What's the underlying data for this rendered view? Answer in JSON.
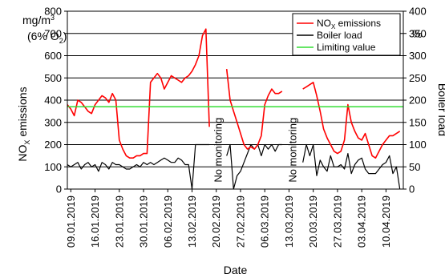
{
  "chart_data": {
    "type": "line",
    "xlabel": "Date",
    "ylabel_left": "NOX emissions",
    "ylabel_left_main": "NO",
    "ylabel_left_sub": "X",
    "ylabel_left_tail": " emissions",
    "ylabel_left_unit_line1": "mg/m",
    "ylabel_left_unit_line1_sup": "3",
    "ylabel_left_unit_line2": "(6% O",
    "ylabel_left_unit_line2_sub": "2",
    "ylabel_left_unit_line2_tail": ")",
    "ylabel_right": "Boiler load",
    "ylabel_right_unit": "%",
    "ylim_left": [
      0,
      800
    ],
    "ylim_right": [
      0,
      400
    ],
    "yticks_left": [
      0,
      100,
      200,
      300,
      400,
      500,
      600,
      700,
      800
    ],
    "yticks_right": [
      0,
      50,
      100,
      150,
      200,
      250,
      300,
      350,
      400
    ],
    "xlim": [
      "2019-01-08",
      "2019-04-15"
    ],
    "xticks": [
      "09.01.2019",
      "16.01.2019",
      "23.01.2019",
      "30.01.2019",
      "06.02.2019",
      "13.02.2019",
      "20.02.2019",
      "27.02.2019",
      "06.03.2019",
      "13.03.2019",
      "20.03.2019",
      "27.03.2019",
      "03.04.2019",
      "10.04.2019"
    ],
    "grid": "horizontal",
    "legend_position": "top-right",
    "annotations": [
      "No monitoring",
      "No monitoring"
    ],
    "series": [
      {
        "name": "NOX emissions",
        "name_main": "NO",
        "name_sub": "X",
        "name_tail": " emissions",
        "axis": "left",
        "color": "#ff0000",
        "segments": [
          {
            "x": [
              "2019-01-08",
              "2019-01-09",
              "2019-01-10",
              "2019-01-11",
              "2019-01-12",
              "2019-01-13",
              "2019-01-14",
              "2019-01-15",
              "2019-01-16",
              "2019-01-17",
              "2019-01-18",
              "2019-01-19",
              "2019-01-20",
              "2019-01-21",
              "2019-01-22",
              "2019-01-23",
              "2019-01-24",
              "2019-01-25",
              "2019-01-26",
              "2019-01-27",
              "2019-01-28",
              "2019-01-29",
              "2019-01-30",
              "2019-01-31",
              "2019-02-01",
              "2019-02-02",
              "2019-02-03",
              "2019-02-04",
              "2019-02-05",
              "2019-02-06",
              "2019-02-07",
              "2019-02-08",
              "2019-02-09",
              "2019-02-10",
              "2019-02-11",
              "2019-02-12",
              "2019-02-13",
              "2019-02-14",
              "2019-02-15",
              "2019-02-16",
              "2019-02-17",
              "2019-02-18"
            ],
            "y": [
              380,
              360,
              330,
              400,
              390,
              370,
              350,
              340,
              380,
              400,
              420,
              410,
              390,
              430,
              400,
              220,
              180,
              150,
              140,
              140,
              150,
              150,
              160,
              160,
              480,
              500,
              520,
              500,
              450,
              480,
              510,
              500,
              490,
              480,
              500,
              510,
              530,
              560,
              600,
              690,
              720,
              280
            ]
          },
          {
            "x": [
              "2019-02-23",
              "2019-02-24",
              "2019-02-25",
              "2019-02-26",
              "2019-02-27",
              "2019-02-28",
              "2019-03-01",
              "2019-03-02",
              "2019-03-03",
              "2019-03-04",
              "2019-03-05",
              "2019-03-06",
              "2019-03-07",
              "2019-03-08",
              "2019-03-09",
              "2019-03-10",
              "2019-03-11"
            ],
            "y": [
              540,
              400,
              350,
              300,
              250,
              200,
              180,
              190,
              180,
              200,
              240,
              380,
              420,
              450,
              430,
              430,
              440
            ]
          },
          {
            "x": [
              "2019-03-17",
              "2019-03-18",
              "2019-03-19",
              "2019-03-20",
              "2019-03-21",
              "2019-03-22",
              "2019-03-23",
              "2019-03-24",
              "2019-03-25",
              "2019-03-26",
              "2019-03-27",
              "2019-03-28",
              "2019-03-29",
              "2019-03-30",
              "2019-03-31",
              "2019-04-01",
              "2019-04-02",
              "2019-04-03",
              "2019-04-04",
              "2019-04-05",
              "2019-04-06",
              "2019-04-07",
              "2019-04-08",
              "2019-04-09",
              "2019-04-10",
              "2019-04-11",
              "2019-04-12",
              "2019-04-13",
              "2019-04-14"
            ],
            "y": [
              450,
              460,
              470,
              480,
              420,
              350,
              270,
              230,
              200,
              170,
              160,
              170,
              220,
              380,
              300,
              260,
              230,
              220,
              250,
              200,
              150,
              140,
              170,
              200,
              220,
              240,
              240,
              250,
              260
            ]
          }
        ]
      },
      {
        "name": "Boiler load",
        "axis": "right",
        "color": "#000000",
        "segments": [
          {
            "x": [
              "2019-01-08",
              "2019-01-09",
              "2019-01-10",
              "2019-01-11",
              "2019-01-12",
              "2019-01-13",
              "2019-01-14",
              "2019-01-15",
              "2019-01-16",
              "2019-01-17",
              "2019-01-18",
              "2019-01-19",
              "2019-01-20",
              "2019-01-21",
              "2019-01-22",
              "2019-01-23",
              "2019-01-24",
              "2019-01-25",
              "2019-01-26",
              "2019-01-27",
              "2019-01-28",
              "2019-01-29",
              "2019-01-30",
              "2019-01-31",
              "2019-02-01",
              "2019-02-02",
              "2019-02-03",
              "2019-02-04",
              "2019-02-05",
              "2019-02-06",
              "2019-02-07",
              "2019-02-08",
              "2019-02-09",
              "2019-02-10",
              "2019-02-11",
              "2019-02-12",
              "2019-02-13",
              "2019-02-14",
              "2019-02-15",
              "2019-02-16",
              "2019-02-17",
              "2019-02-18"
            ],
            "y": [
              55,
              50,
              55,
              60,
              45,
              55,
              60,
              50,
              55,
              40,
              60,
              55,
              45,
              60,
              55,
              55,
              50,
              45,
              45,
              50,
              55,
              50,
              60,
              55,
              60,
              55,
              60,
              65,
              70,
              65,
              60,
              60,
              70,
              65,
              55,
              55,
              0,
              100,
              100,
              100,
              100,
              100
            ]
          },
          {
            "x": [
              "2019-02-23",
              "2019-02-24",
              "2019-02-25",
              "2019-02-26",
              "2019-02-27",
              "2019-02-28",
              "2019-03-01",
              "2019-03-02",
              "2019-03-03",
              "2019-03-04",
              "2019-03-05",
              "2019-03-06",
              "2019-03-07",
              "2019-03-08",
              "2019-03-09",
              "2019-03-10",
              "2019-03-11"
            ],
            "y": [
              75,
              100,
              0,
              30,
              40,
              60,
              80,
              100,
              90,
              100,
              75,
              100,
              90,
              100,
              85,
              100,
              100
            ]
          },
          {
            "x": [
              "2019-03-17",
              "2019-03-18",
              "2019-03-19",
              "2019-03-20",
              "2019-03-21",
              "2019-03-22",
              "2019-03-23",
              "2019-03-24",
              "2019-03-25",
              "2019-03-26",
              "2019-03-27",
              "2019-03-28",
              "2019-03-29",
              "2019-03-30",
              "2019-03-31",
              "2019-04-01",
              "2019-04-02",
              "2019-04-03",
              "2019-04-04",
              "2019-04-05",
              "2019-04-06",
              "2019-04-07",
              "2019-04-08",
              "2019-04-09",
              "2019-04-10",
              "2019-04-11",
              "2019-04-12",
              "2019-04-13",
              "2019-04-14"
            ],
            "y": [
              60,
              100,
              75,
              100,
              30,
              65,
              50,
              40,
              75,
              50,
              50,
              55,
              45,
              80,
              35,
              55,
              65,
              70,
              45,
              35,
              35,
              35,
              45,
              55,
              60,
              75,
              35,
              50,
              0
            ]
          }
        ]
      },
      {
        "name": "Limiting value",
        "axis": "left",
        "color": "#33dd33",
        "x": [
          "2019-01-08",
          "2019-04-15"
        ],
        "y": [
          370,
          370
        ]
      }
    ]
  }
}
